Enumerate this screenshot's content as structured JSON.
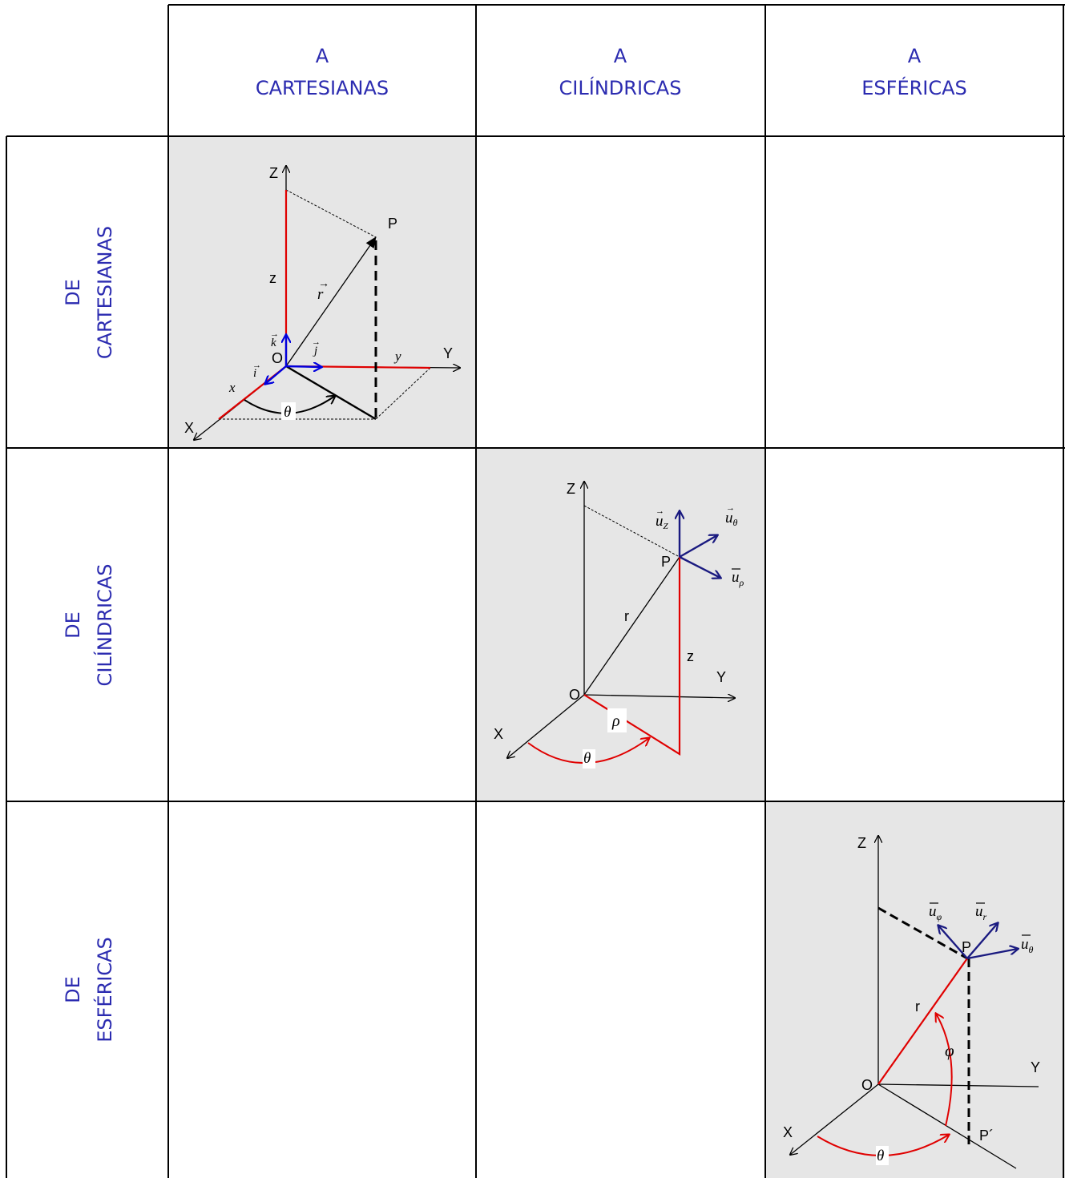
{
  "header": {
    "col1_line1": "A",
    "col1_line2": "CARTESIANAS",
    "col2_line1": "A",
    "col2_line2": "CILÍNDRICAS",
    "col3_line1": "A",
    "col3_line2": "ESFÉRICAS"
  },
  "rows": {
    "row1_line1": "DE",
    "row1_line2": "CARTESIANAS",
    "row2_line1": "DE",
    "row2_line2": "CILÍNDRICAS",
    "row3_line1": "DE",
    "row3_line2": "ESFÉRICAS"
  },
  "cartesian_diagram": {
    "axis_z": "Z",
    "axis_y": "Y",
    "axis_x": "X",
    "point": "P",
    "origin": "O",
    "comp_z": "z",
    "comp_y": "y",
    "comp_x": "x",
    "vec_r": "r",
    "vec_i": "i",
    "vec_j": "j",
    "vec_k": "k",
    "angle": "θ",
    "colors": {
      "component": "#e00000",
      "unit_vector": "#0000dd",
      "line": "#000000"
    }
  },
  "cylindrical_diagram": {
    "axis_z": "Z",
    "axis_y": "Y",
    "axis_x": "X",
    "point": "P",
    "origin": "O",
    "radius": "r",
    "height": "z",
    "rho": "ρ",
    "angle": "θ",
    "u_z": "u",
    "u_z_sub": "Z",
    "u_theta": "u",
    "u_theta_sub": "θ",
    "u_rho": "u",
    "u_rho_sub": "ρ",
    "colors": {
      "component": "#e00000",
      "unit_vector": "#1a1a80"
    }
  },
  "spherical_diagram": {
    "axis_z": "Z",
    "axis_y": "Y",
    "axis_x": "X",
    "point": "P",
    "projection": "P´",
    "origin": "O",
    "radius": "r",
    "polar_angle": "φ",
    "azimuth": "θ",
    "u_phi": "u",
    "u_phi_sub": "φ",
    "u_r": "u",
    "u_r_sub": "r",
    "u_theta": "u",
    "u_theta_sub": "θ",
    "colors": {
      "component": "#e00000",
      "unit_vector": "#1a1a80"
    }
  },
  "colors": {
    "grid_line": "#000000",
    "header_text": "#2b2bb0",
    "diagonal_cell": "#e6e6e6"
  }
}
